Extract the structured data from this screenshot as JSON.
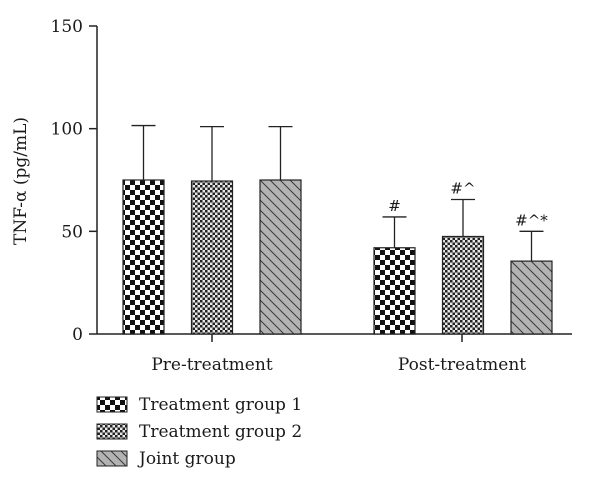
{
  "chart_data": {
    "type": "bar",
    "ylabel": "TNF-α (pg/mL)",
    "ylim": [
      0,
      150
    ],
    "yticks": [
      0,
      50,
      100,
      150
    ],
    "categories": [
      "Pre-treatment",
      "Post-treatment"
    ],
    "series": [
      {
        "name": "Treatment group 1",
        "pattern": "checker-large",
        "values": [
          75,
          42
        ],
        "errors": [
          26.5,
          15
        ],
        "annotations": [
          "",
          "#"
        ]
      },
      {
        "name": "Treatment group 2",
        "pattern": "checker-small",
        "values": [
          74.5,
          47.5
        ],
        "errors": [
          26.5,
          18
        ],
        "annotations": [
          "",
          "#^"
        ]
      },
      {
        "name": "Joint group",
        "pattern": "diagonal-gray",
        "values": [
          75,
          35.5
        ],
        "errors": [
          26,
          14.5
        ],
        "annotations": [
          "",
          "#^*"
        ]
      }
    ],
    "legend_position": "bottom-left",
    "grid": false
  }
}
